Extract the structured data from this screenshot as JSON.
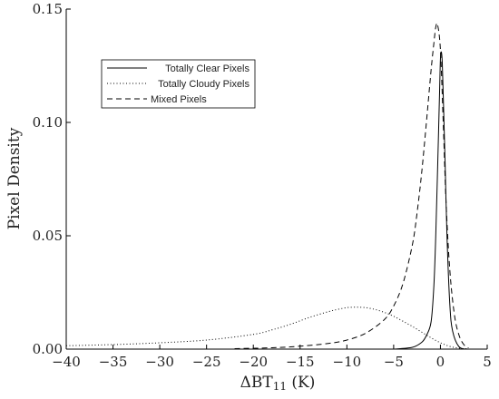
{
  "chart_data": {
    "type": "line",
    "xlabel": "ΔBT",
    "xlabel_sub": "11",
    "xlabel_unit": " (K)",
    "ylabel": "Pixel Density",
    "xlim": [
      -40,
      5
    ],
    "ylim": [
      0,
      0.15
    ],
    "xticks": [
      "−40",
      "−35",
      "−30",
      "−25",
      "−20",
      "−15",
      "−10",
      "−5",
      "0",
      "5"
    ],
    "xtick_values": [
      -40,
      -35,
      -30,
      -25,
      -20,
      -15,
      -10,
      -5,
      0,
      5
    ],
    "yticks": [
      "0.00",
      "0.05",
      "0.10",
      "0.15"
    ],
    "ytick_values": [
      0,
      0.05,
      0.1,
      0.15
    ],
    "grid": false,
    "legend_position": "top-left",
    "series": [
      {
        "name": "Totally Clear Pixels",
        "style": "solid",
        "x": [
          -5,
          -3,
          -2,
          -1.5,
          -1,
          -0.7,
          -0.5,
          -0.3,
          -0.1,
          0,
          0.1,
          0.2,
          0.3,
          0.5,
          0.7,
          1,
          1.3,
          2,
          3
        ],
        "y": [
          0,
          0.0008,
          0.003,
          0.006,
          0.012,
          0.028,
          0.05,
          0.08,
          0.112,
          0.128,
          0.131,
          0.126,
          0.112,
          0.082,
          0.05,
          0.02,
          0.008,
          0.001,
          0
        ]
      },
      {
        "name": "Totally Cloudy Pixels",
        "style": "dotted",
        "x": [
          -40,
          -35,
          -30,
          -25,
          -20,
          -18,
          -16,
          -14,
          -12,
          -11,
          -10,
          -9,
          -8,
          -7,
          -6,
          -5,
          -4,
          -3,
          -2,
          -1,
          0,
          1,
          2,
          3
        ],
        "y": [
          0.0015,
          0.002,
          0.0028,
          0.004,
          0.0065,
          0.0085,
          0.011,
          0.014,
          0.0165,
          0.0175,
          0.0183,
          0.0185,
          0.0183,
          0.0175,
          0.0162,
          0.0145,
          0.0123,
          0.01,
          0.0075,
          0.005,
          0.0028,
          0.0012,
          0.0004,
          0.0001
        ]
      },
      {
        "name": "Mixed Pixels",
        "style": "dashed",
        "x": [
          -22,
          -18,
          -15,
          -12,
          -10,
          -8,
          -6,
          -5,
          -4,
          -3,
          -2.5,
          -2,
          -1.5,
          -1,
          -0.7,
          -0.5,
          -0.3,
          0,
          0.3,
          0.6,
          1,
          1.5,
          2,
          2.5,
          3
        ],
        "y": [
          0.0002,
          0.0006,
          0.0013,
          0.0025,
          0.004,
          0.007,
          0.013,
          0.019,
          0.029,
          0.046,
          0.06,
          0.078,
          0.1,
          0.123,
          0.135,
          0.142,
          0.143,
          0.132,
          0.1,
          0.065,
          0.035,
          0.015,
          0.006,
          0.002,
          0.0005
        ]
      }
    ]
  }
}
